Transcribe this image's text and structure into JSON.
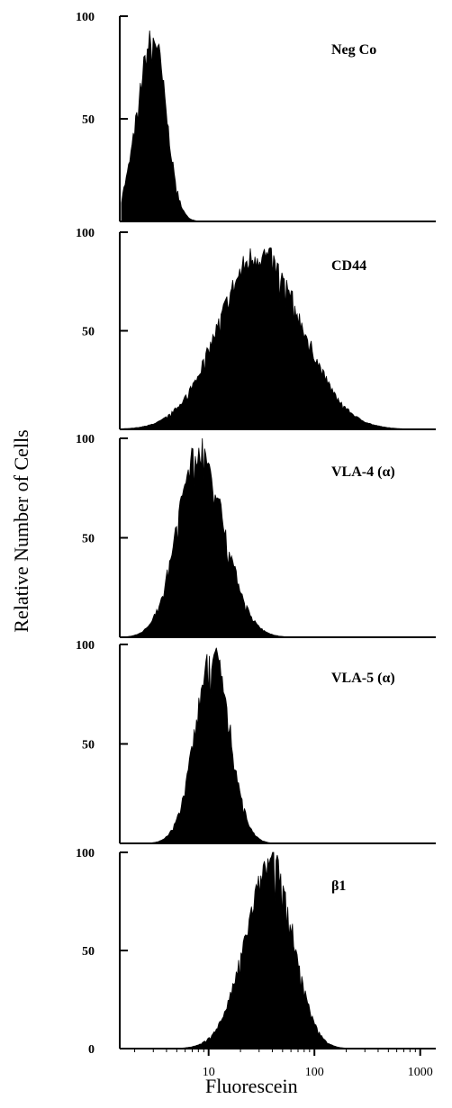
{
  "chart_data": {
    "type": "area",
    "xlabel": "Fluorescein",
    "ylabel": "Relative Number of Cells",
    "x_scale": "log",
    "xlim": [
      1,
      1000
    ],
    "x_ticks": [
      {
        "value": 10,
        "label": "10"
      },
      {
        "value": 100,
        "label": "100"
      },
      {
        "value": 1000,
        "label": "1000"
      }
    ],
    "ylim": [
      0,
      100
    ],
    "y_tick_labels": [
      "100",
      "50",
      "0"
    ],
    "grid": false,
    "panels": [
      {
        "label": "Neg Co",
        "peak_x": 3.0,
        "spread_left": 0.15,
        "spread_right": 0.12,
        "peak_y": 95
      },
      {
        "label": "CD44",
        "peak_x": 30,
        "spread_left": 0.38,
        "spread_right": 0.4,
        "peak_y": 94
      },
      {
        "label": "VLA-4 (α)",
        "peak_x": 8,
        "spread_left": 0.2,
        "spread_right": 0.24,
        "peak_y": 100
      },
      {
        "label": "VLA-5 (α)",
        "peak_x": 11,
        "spread_left": 0.17,
        "spread_right": 0.16,
        "peak_y": 100
      },
      {
        "label": "β1",
        "peak_x": 40,
        "spread_left": 0.25,
        "spread_right": 0.2,
        "peak_y": 100
      }
    ]
  }
}
